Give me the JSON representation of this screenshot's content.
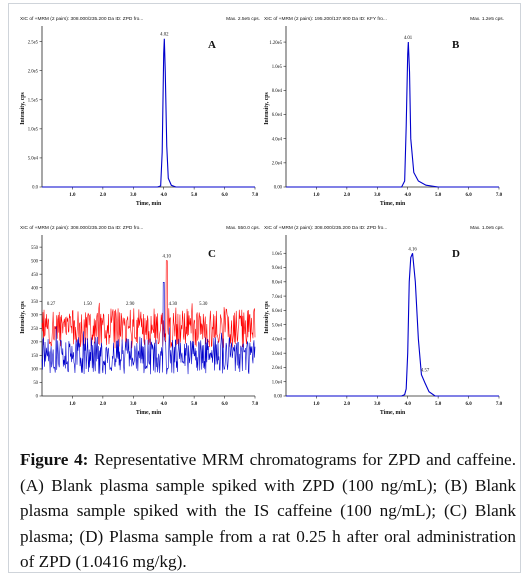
{
  "figure": {
    "caption_label": "Figure 4:",
    "caption_text": "Representative MRM chromatograms for ZPD and caffeine. (A) Blank plasma sample spiked with ZPD (100 ng/mL); (B) Blank plasma sample spiked with the IS caffeine (100 ng/mL); (C) Blank plasma; (D) Plasma sample from a rat 0.25 h after oral administration of ZPD (1.0416 mg/kg)."
  },
  "colors": {
    "blue": "#0000cc",
    "red": "#ff0000",
    "text": "#111111",
    "axis": "#222222"
  },
  "chart_data": [
    {
      "id": "A",
      "type": "line",
      "header": "XIC of +MRM (2 pairs): 308.000/235.200 Da ID: ZPD fro...",
      "max_label": "Max. 2.5e5 cps.",
      "panel_letter": "A",
      "xlabel": "Time, min",
      "ylabel": "Intensity, cps",
      "xlim": [
        0,
        7
      ],
      "ylim": [
        0,
        270000
      ],
      "x_ticks": [
        1.0,
        2.0,
        3.0,
        4.0,
        5.0,
        6.0,
        7.0
      ],
      "x_tick_labels": [
        "1.0",
        "2.0",
        "3.0",
        "4.0",
        "5.0",
        "6.0",
        "7.0"
      ],
      "y_ticks": [
        0,
        50000,
        100000,
        150000,
        200000,
        250000
      ],
      "y_tick_labels": [
        "0.0",
        "5.0e4",
        "1.0e5",
        "1.5e5",
        "2.0e5",
        "2.5e5"
      ],
      "peak_labels": [
        {
          "x": 4.02,
          "text": "4.02"
        }
      ],
      "series": [
        {
          "color": "#0000cc",
          "x": [
            0,
            3.8,
            3.9,
            3.95,
            4.0,
            4.02,
            4.05,
            4.1,
            4.15,
            4.25,
            4.4,
            7
          ],
          "y": [
            0,
            0,
            2000,
            60000,
            230000,
            255000,
            200000,
            70000,
            15000,
            3000,
            0,
            0
          ]
        }
      ]
    },
    {
      "id": "B",
      "type": "line",
      "header": "XIC of +MRM (2 pairs): 195.200/137.900 Da ID: KFY fro...",
      "max_label": "Max. 1.2e5 cps.",
      "panel_letter": "B",
      "xlabel": "Time, min",
      "ylabel": "Intensity, cps",
      "xlim": [
        0,
        7
      ],
      "ylim": [
        0,
        130000
      ],
      "x_ticks": [
        1.0,
        2.0,
        3.0,
        4.0,
        5.0,
        6.0,
        7.0
      ],
      "x_tick_labels": [
        "1.0",
        "2.0",
        "3.0",
        "4.0",
        "5.0",
        "6.0",
        "7.0"
      ],
      "y_ticks": [
        0,
        20000,
        40000,
        60000,
        80000,
        100000,
        120000
      ],
      "y_tick_labels": [
        "0.00",
        "2.0e4",
        "4.0e4",
        "6.0e4",
        "8.0e4",
        "1.0e5",
        "1.20e5"
      ],
      "peak_labels": [
        {
          "x": 4.01,
          "text": "4.01"
        }
      ],
      "series": [
        {
          "color": "#0000cc",
          "x": [
            0,
            3.8,
            3.9,
            3.95,
            4.0,
            4.02,
            4.06,
            4.1,
            4.2,
            4.35,
            4.6,
            5.0,
            7
          ],
          "y": [
            0,
            0,
            5000,
            50000,
            110000,
            120000,
            95000,
            40000,
            12000,
            5000,
            1500,
            0,
            0
          ]
        }
      ]
    },
    {
      "id": "C",
      "type": "line",
      "header": "XIC of +MRM (2 pairs): 308.000/235.200 Da ID: ZPD fro...",
      "max_label": "Max. 550.0 cps.",
      "panel_letter": "C",
      "xlabel": "Time, min",
      "ylabel": "Intensity, cps",
      "xlim": [
        0,
        7
      ],
      "ylim": [
        0,
        580
      ],
      "x_ticks": [
        1.0,
        2.0,
        3.0,
        4.0,
        5.0,
        6.0,
        7.0
      ],
      "x_tick_labels": [
        "1.0",
        "2.0",
        "3.0",
        "4.0",
        "5.0",
        "6.0",
        "7.0"
      ],
      "y_ticks": [
        0,
        50,
        100,
        150,
        200,
        250,
        300,
        350,
        400,
        450,
        500,
        550
      ],
      "y_tick_labels": [
        "0",
        "50",
        "100",
        "150",
        "200",
        "250",
        "300",
        "350",
        "400",
        "450",
        "500",
        "550"
      ],
      "peak_labels": [
        {
          "x": 4.1,
          "text": "4.10"
        },
        {
          "x": 4.3,
          "text": "4.30"
        },
        {
          "x": 0.3,
          "text": "0.27"
        },
        {
          "x": 1.5,
          "text": "1.50"
        },
        {
          "x": 2.9,
          "text": "2.90"
        },
        {
          "x": 5.3,
          "text": "5.30"
        }
      ],
      "series": [
        {
          "name": "",
          "color": "#ff0000",
          "noise_mean": 250,
          "noise_amp": 75,
          "spike_x": 4.1,
          "spike_y": 500
        },
        {
          "name": "",
          "color": "#0000cc",
          "noise_mean": 150,
          "noise_amp": 70,
          "spike_x": 4.0,
          "spike_y": 420
        }
      ]
    },
    {
      "id": "D",
      "type": "line",
      "header": "XIC of +MRM (2 pairs): 308.000/235.200 Da ID: ZPD fro...",
      "max_label": "Max. 1.0e5 cps.",
      "panel_letter": "D",
      "xlabel": "Time, min",
      "ylabel": "Intensity, cps",
      "xlim": [
        0,
        7
      ],
      "ylim": [
        0,
        110000
      ],
      "x_ticks": [
        1.0,
        2.0,
        3.0,
        4.0,
        5.0,
        6.0,
        7.0
      ],
      "x_tick_labels": [
        "1.0",
        "2.0",
        "3.0",
        "4.0",
        "5.0",
        "6.0",
        "7.0"
      ],
      "y_ticks": [
        0,
        10000,
        20000,
        30000,
        40000,
        50000,
        60000,
        70000,
        80000,
        90000,
        100000
      ],
      "y_tick_labels": [
        "0.00",
        "1.0e4",
        "2.0e4",
        "3.0e4",
        "4.0e4",
        "5.0e4",
        "6.0e4",
        "7.0e4",
        "8.0e4",
        "9.0e4",
        "1.0e5"
      ],
      "peak_labels": [
        {
          "x": 4.16,
          "text": "4.16"
        },
        {
          "x": 4.57,
          "text": "4.57"
        }
      ],
      "series": [
        {
          "color": "#0000cc",
          "x": [
            0,
            3.8,
            3.9,
            3.95,
            4.0,
            4.05,
            4.1,
            4.16,
            4.25,
            4.35,
            4.45,
            4.57,
            4.7,
            4.9,
            7
          ],
          "y": [
            0,
            0,
            1000,
            5000,
            30000,
            80000,
            97000,
            100000,
            80000,
            40000,
            15000,
            9000,
            3000,
            0,
            0
          ]
        }
      ]
    }
  ]
}
